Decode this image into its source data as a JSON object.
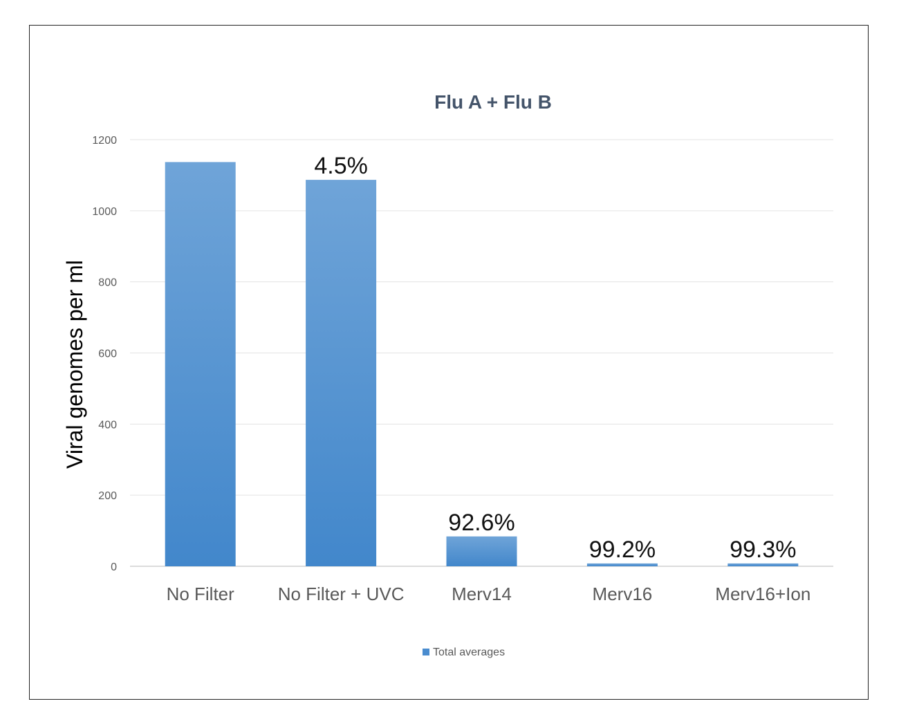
{
  "chart_data": {
    "type": "bar",
    "title": "Flu A + Flu B",
    "ylabel": "Viral genomes per ml",
    "xlabel": "",
    "categories": [
      "No Filter",
      "No Filter + UVC",
      "Merv14",
      "Merv16",
      "Merv16+Ion"
    ],
    "series": [
      {
        "name": "Total averages",
        "values": [
          1137,
          1087,
          84,
          8,
          8
        ],
        "data_labels": [
          "",
          "4.5%",
          "92.6%",
          "99.2%",
          "99.3%"
        ]
      }
    ],
    "ylim": [
      0,
      1200
    ],
    "yticks": [
      0,
      200,
      400,
      600,
      800,
      1000,
      1200
    ],
    "grid": true,
    "legend_position": "bottom-center",
    "colors": {
      "bar_top": "#6fa4d8",
      "bar_bottom": "#4287cb",
      "legend_swatch": "#4a8ccf",
      "title": "#44546a"
    }
  }
}
